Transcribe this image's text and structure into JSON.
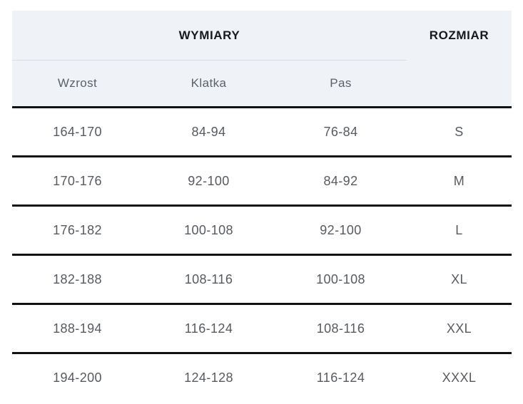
{
  "chart_data": {
    "type": "table",
    "title": "",
    "column_groups": [
      {
        "label": "WYMIARY",
        "span": 3
      },
      {
        "label": "ROZMIAR",
        "span": 1
      }
    ],
    "columns": [
      "Wzrost",
      "Klatka",
      "Pas"
    ],
    "rows": [
      [
        "164-170",
        "84-94",
        "76-84",
        "S"
      ],
      [
        "170-176",
        "92-100",
        "84-92",
        "M"
      ],
      [
        "176-182",
        "100-108",
        "92-100",
        "L"
      ],
      [
        "182-188",
        "108-116",
        "100-108",
        "XL"
      ],
      [
        "188-194",
        "116-124",
        "108-116",
        "XXL"
      ],
      [
        "194-200",
        "124-128",
        "116-124",
        "XXXL"
      ]
    ]
  },
  "colors": {
    "header_background": "#eff3f7",
    "header_text": "#16191d",
    "subheader_text": "#5c6167",
    "data_text": "#565b61",
    "row_border": "#111111",
    "header_divider": "#d9dee4",
    "page_background": "#ffffff"
  }
}
